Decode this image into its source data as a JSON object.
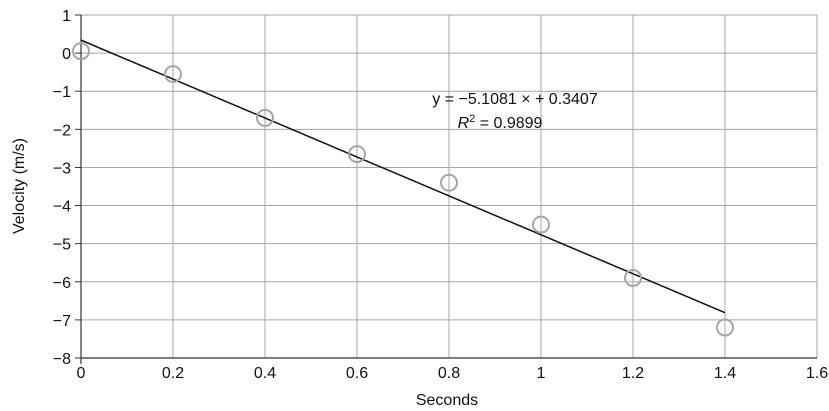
{
  "chart_data": {
    "type": "scatter",
    "xlabel": "Seconds",
    "ylabel": "Velocity (m/s)",
    "xlim": [
      0,
      1.6
    ],
    "ylim": [
      -8,
      1
    ],
    "x_ticks": [
      "0",
      "0.2",
      "0.4",
      "0.6",
      "0.8",
      "1",
      "1.2",
      "1.4",
      "1.6"
    ],
    "y_ticks": [
      "1",
      "0",
      "−1",
      "−2",
      "−3",
      "−4",
      "−5",
      "−6",
      "−7",
      "−8"
    ],
    "grid": true,
    "series": [
      {
        "points": [
          {
            "x": 0,
            "y": 0.05
          },
          {
            "x": 0.2,
            "y": -0.55
          },
          {
            "x": 0.4,
            "y": -1.7
          },
          {
            "x": 0.6,
            "y": -2.65
          },
          {
            "x": 0.8,
            "y": -3.4
          },
          {
            "x": 1.0,
            "y": -4.5
          },
          {
            "x": 1.2,
            "y": -5.9
          },
          {
            "x": 1.4,
            "y": -7.2
          }
        ]
      }
    ],
    "trendline": {
      "slope": -5.1081,
      "intercept": 0.3407,
      "x_range": [
        0,
        1.4
      ],
      "equation": "y = −5.1081 × + 0.3407",
      "r2_label": "R",
      "r2_sup": "2",
      "r2_value": " = 0.9899"
    },
    "colors": {
      "marker": "#a6a6a6",
      "grid": "#a6a6a6",
      "axis": "#333333",
      "trendline": "#111111"
    }
  }
}
